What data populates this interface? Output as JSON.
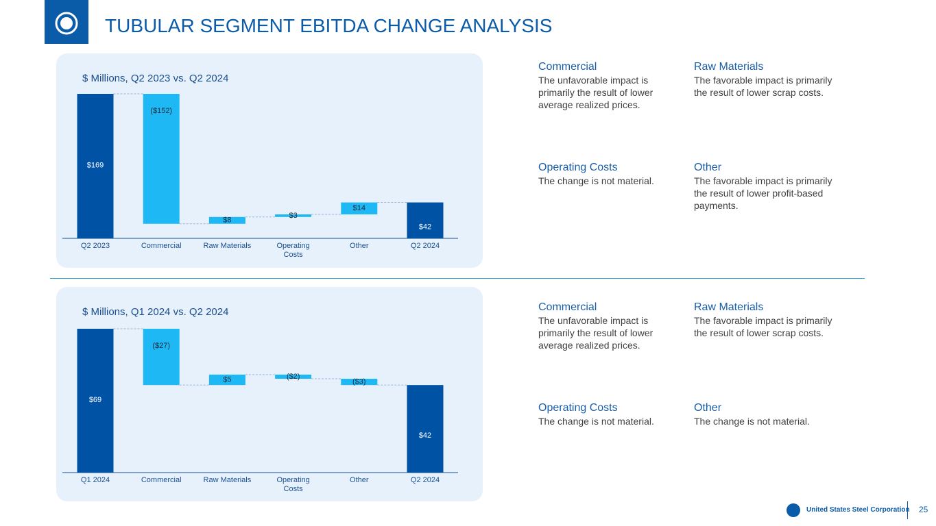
{
  "header": {
    "title": "TUBULAR SEGMENT EBITDA CHANGE ANALYSIS"
  },
  "chart_data": [
    {
      "type": "waterfall",
      "subtitle": "$ Millions, Q2 2023 vs. Q2 2024",
      "categories": [
        "Q2 2023",
        "Commercial",
        "Raw Materials",
        "Operating Costs",
        "Other",
        "Q2 2024"
      ],
      "values": [
        169,
        -152,
        8,
        3,
        14,
        42
      ],
      "value_labels": [
        "$169",
        "($152)",
        "$8",
        "$3",
        "$14",
        "$42"
      ],
      "total_color": "#0052a5",
      "color": "#1eb8f5"
    },
    {
      "type": "waterfall",
      "subtitle": "$ Millions, Q1 2024 vs. Q2 2024",
      "categories": [
        "Q1 2024",
        "Commercial",
        "Raw Materials",
        "Operating Costs",
        "Other",
        "Q2 2024"
      ],
      "values": [
        69,
        -27,
        5,
        -2,
        -3,
        42
      ],
      "value_labels": [
        "$69",
        "($27)",
        "$5",
        "($2)",
        "($3)",
        "$42"
      ],
      "total_color": "#0052a5",
      "color": "#1eb8f5"
    }
  ],
  "notes": [
    [
      {
        "heading": "Commercial",
        "text": "The unfavorable impact is primarily the result of lower average realized prices."
      },
      {
        "heading": "Raw Materials",
        "text": "The favorable impact is primarily the result of lower scrap costs."
      },
      {
        "heading": "Operating Costs",
        "text": "The change is not material."
      },
      {
        "heading": "Other",
        "text": "The favorable impact is primarily the result of lower profit-based payments."
      }
    ],
    [
      {
        "heading": "Commercial",
        "text": "The unfavorable impact is primarily the result of lower average realized prices."
      },
      {
        "heading": "Raw Materials",
        "text": "The favorable impact is primarily the result of lower scrap costs."
      },
      {
        "heading": "Operating Costs",
        "text": "The change is not material."
      },
      {
        "heading": "Other",
        "text": "The change is not material."
      }
    ]
  ],
  "footer": {
    "company": "United States Steel Corporation",
    "page": "25"
  }
}
